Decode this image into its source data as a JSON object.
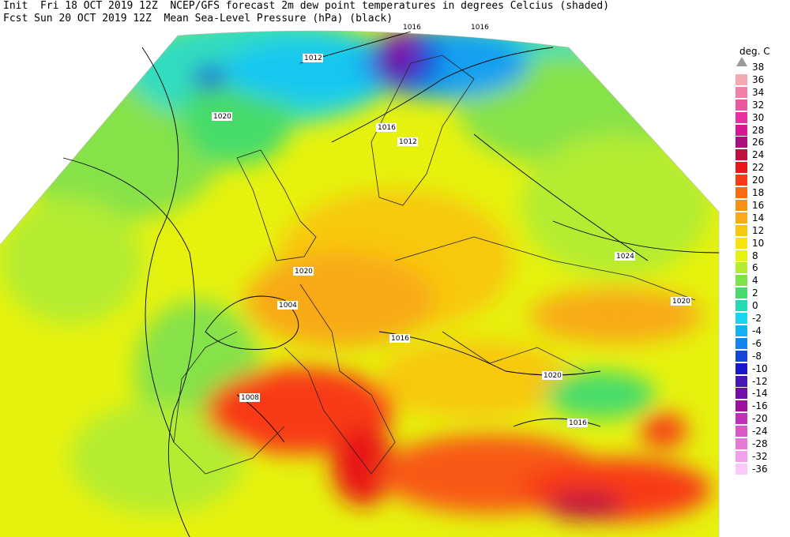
{
  "header": {
    "line1_a": "Init  Fri 18 OCT 2019 12Z",
    "line1_b": "NCEP/GFS forecast 2m dew point temperatures in degrees Celcius (shaded)",
    "line2_a": "Fcst Sun 20 OCT 2019 12Z",
    "line2_b": "Mean Sea-Level Pressure (hPa) (black)"
  },
  "legend": {
    "title": "deg. C",
    "entries": [
      {
        "label": "38",
        "color": "#ffffff"
      },
      {
        "label": "36",
        "color": "#f4a8b0"
      },
      {
        "label": "34",
        "color": "#f080a8"
      },
      {
        "label": "32",
        "color": "#ec58a0"
      },
      {
        "label": "30",
        "color": "#e830a0"
      },
      {
        "label": "28",
        "color": "#d81890"
      },
      {
        "label": "26",
        "color": "#a81080"
      },
      {
        "label": "24",
        "color": "#c01040"
      },
      {
        "label": "22",
        "color": "#e81818"
      },
      {
        "label": "20",
        "color": "#f83a18"
      },
      {
        "label": "18",
        "color": "#fa6a10"
      },
      {
        "label": "16",
        "color": "#f89018"
      },
      {
        "label": "14",
        "color": "#f8aa18"
      },
      {
        "label": "12",
        "color": "#f8c810"
      },
      {
        "label": "10",
        "color": "#f8e410"
      },
      {
        "label": "8",
        "color": "#e4f40e"
      },
      {
        "label": "6",
        "color": "#b4ec30"
      },
      {
        "label": "4",
        "color": "#7ee24a"
      },
      {
        "label": "2",
        "color": "#46dc6a"
      },
      {
        "label": "0",
        "color": "#20dcb0"
      },
      {
        "label": "-2",
        "color": "#18d4f0"
      },
      {
        "label": "-4",
        "color": "#14b0f4"
      },
      {
        "label": "-6",
        "color": "#1484ee"
      },
      {
        "label": "-8",
        "color": "#1048dc"
      },
      {
        "label": "-10",
        "color": "#1818c8"
      },
      {
        "label": "-12",
        "color": "#4818b4"
      },
      {
        "label": "-14",
        "color": "#7010a8"
      },
      {
        "label": "-16",
        "color": "#a010a0"
      },
      {
        "label": "-20",
        "color": "#c030b8"
      },
      {
        "label": "-24",
        "color": "#d858c8"
      },
      {
        "label": "-28",
        "color": "#e878d8"
      },
      {
        "label": "-32",
        "color": "#f4a0ec"
      },
      {
        "label": "-36",
        "color": "#fcc8f8"
      }
    ]
  },
  "isobar_labels": [
    "1012",
    "1020",
    "1016",
    "1012",
    "1024",
    "1020",
    "1020",
    "1016",
    "1004",
    "1020",
    "1016",
    "1008",
    "1016",
    "1016"
  ]
}
